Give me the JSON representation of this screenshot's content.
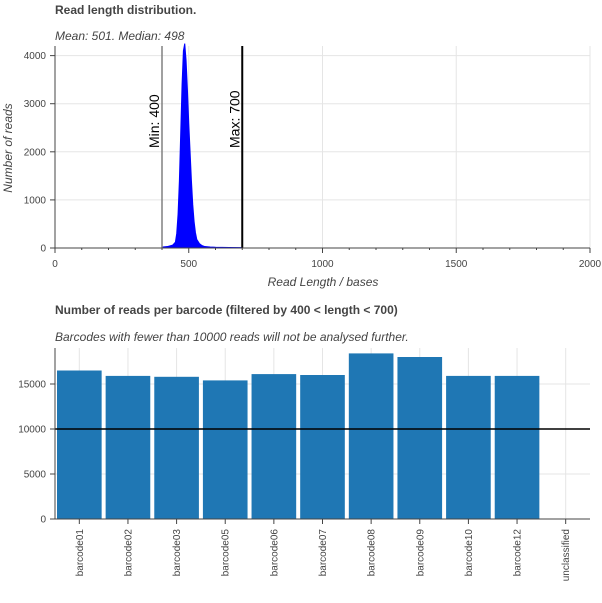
{
  "chart_data": [
    {
      "type": "area",
      "title": "Read length distribution.",
      "subtitle": "Mean: 501. Median: 498",
      "xlabel": "Read Length / bases",
      "ylabel": "Number of reads",
      "xlim": [
        0,
        2000
      ],
      "ylim": [
        0,
        4200
      ],
      "xticks": [
        "0",
        "500",
        "1000",
        "1500",
        "2000"
      ],
      "yticks": [
        "0",
        "1000",
        "2000",
        "3000",
        "4000"
      ],
      "grid": true,
      "color": "#0000ff",
      "x": [
        400,
        420,
        440,
        450,
        455,
        460,
        465,
        470,
        475,
        480,
        485,
        490,
        495,
        500,
        505,
        510,
        515,
        520,
        525,
        530,
        540,
        550,
        560,
        580,
        600,
        650,
        700
      ],
      "y": [
        20,
        30,
        60,
        120,
        300,
        700,
        1400,
        2400,
        3400,
        4100,
        4250,
        3900,
        3300,
        2600,
        2000,
        1400,
        900,
        550,
        320,
        180,
        90,
        50,
        30,
        20,
        15,
        10,
        8
      ],
      "vlines": [
        {
          "x": 400,
          "label": "Min: 400",
          "color": "#808080"
        },
        {
          "x": 700,
          "label": "Max: 700",
          "color": "#000000"
        }
      ]
    },
    {
      "type": "bar",
      "title": "Number of reads per barcode (filtered by 400 < length < 700)",
      "subtitle": "Barcodes with fewer than 10000 reads will not be analysed further.",
      "categories": [
        "barcode01",
        "barcode02",
        "barcode03",
        "barcode05",
        "barcode06",
        "barcode07",
        "barcode08",
        "barcode09",
        "barcode10",
        "barcode12",
        "unclassified"
      ],
      "values": [
        16500,
        15900,
        15800,
        15400,
        16100,
        16000,
        18400,
        18000,
        15900,
        15900,
        0
      ],
      "ylim": [
        0,
        19000
      ],
      "yticks": [
        "0",
        "5000",
        "10000",
        "15000"
      ],
      "threshold": 10000,
      "grid": true,
      "color": "#1f77b4"
    }
  ]
}
